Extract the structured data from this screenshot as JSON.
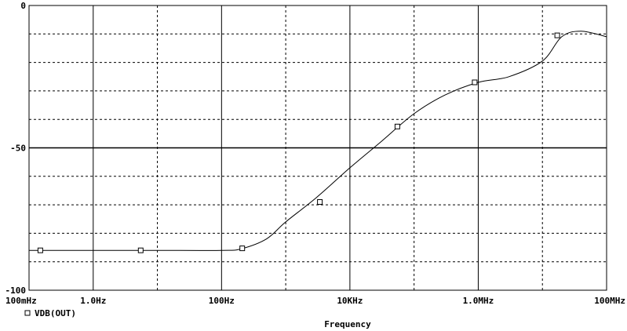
{
  "chart_data": {
    "type": "line",
    "xlabel": "Frequency",
    "x_scale": "log",
    "xlim": [
      0.1,
      100000000
    ],
    "ylim": [
      -100,
      0
    ],
    "x_tick_values": [
      0.1,
      1,
      100,
      10000,
      1000000,
      100000000
    ],
    "x_tick_labels": [
      "100mHz",
      "1.0Hz",
      "100Hz",
      "10KHz",
      "1.0MHz",
      "100MHz"
    ],
    "y_tick_values": [
      0,
      -50,
      -100
    ],
    "y_tick_labels": [
      "0",
      "-50",
      "-100"
    ],
    "grid": true,
    "legend_position": "bottom-left",
    "series": [
      {
        "name": "VDB(OUT)",
        "marker": "square",
        "color": "#000000",
        "x": [
          0.1,
          1,
          10,
          100,
          200,
          500,
          1000,
          3000,
          10000,
          30000,
          100000,
          300000,
          1000000,
          3000000,
          10000000,
          20000000,
          40000000,
          100000000
        ],
        "y": [
          -86,
          -86,
          -86,
          -86,
          -85.5,
          -82,
          -76,
          -67.5,
          -57,
          -48,
          -38,
          -31.5,
          -27,
          -25,
          -19.5,
          -11,
          -9,
          -11
        ]
      }
    ],
    "marker_points": [
      {
        "x": 0.15,
        "y": -86
      },
      {
        "x": 5.5,
        "y": -86
      },
      {
        "x": 210,
        "y": -85.3
      },
      {
        "x": 3400,
        "y": -69
      },
      {
        "x": 55000,
        "y": -42.5
      },
      {
        "x": 880000,
        "y": -27
      },
      {
        "x": 17000000,
        "y": -10.5
      }
    ]
  }
}
